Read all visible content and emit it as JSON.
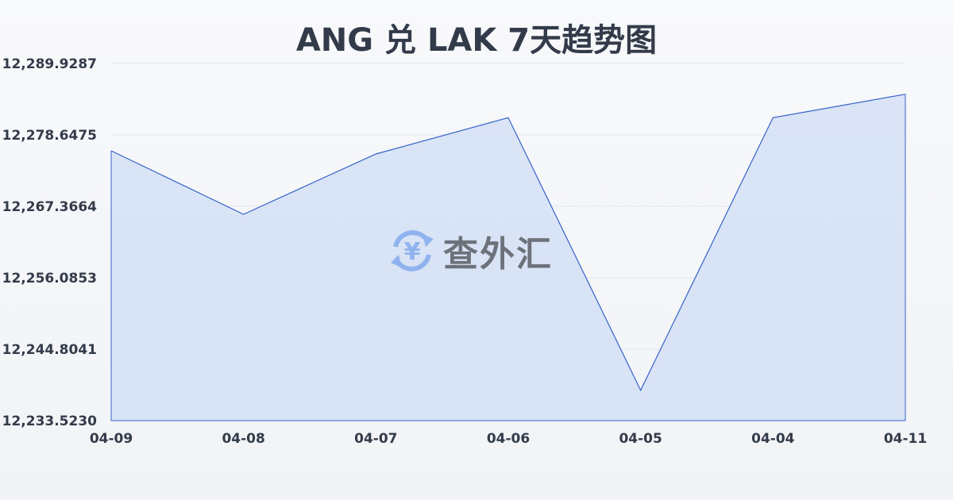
{
  "chart_data": {
    "type": "area",
    "title": "ANG 兑 LAK 7天趋势图",
    "categories": [
      "04-09",
      "04-08",
      "04-07",
      "04-06",
      "04-05",
      "04-04",
      "04-11"
    ],
    "values": [
      12276.14,
      12266.11,
      12275.64,
      12281.37,
      12238.32,
      12281.37,
      12285.08
    ],
    "yticks": [
      "12,233.5230",
      "12,244.8041",
      "12,256.0853",
      "12,267.3664",
      "12,278.6475",
      "12,289.9287"
    ],
    "ylim": [
      12233.523,
      12289.9287
    ],
    "grid": true,
    "line_color": "#3563c9",
    "fill_color": "#d6e1f5"
  },
  "watermark": {
    "text": "查外汇",
    "icon": "yen-exchange-icon"
  }
}
